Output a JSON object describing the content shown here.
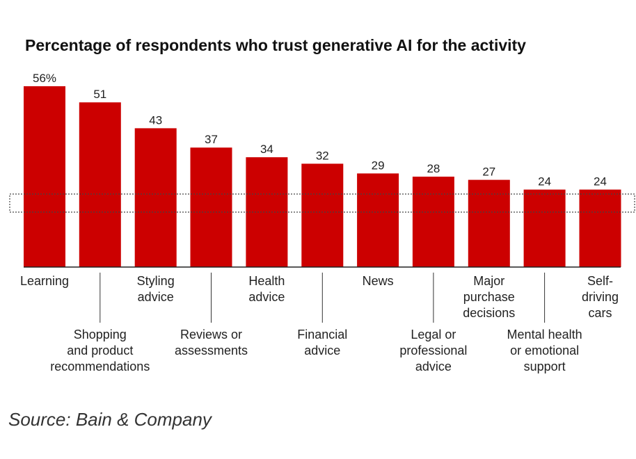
{
  "chart_data": {
    "type": "bar",
    "title": "Percentage of respondents who trust generative AI for the activity",
    "categories": [
      "Learning",
      "Shopping and product recommendations",
      "Styling advice",
      "Reviews or assessments",
      "Health advice",
      "Financial advice",
      "News",
      "Legal or professional advice",
      "Major purchase decisions",
      "Mental health or emotional support",
      "Self-driving cars"
    ],
    "label_lines": [
      [
        "Learning"
      ],
      [
        "Shopping",
        "and product",
        "recommendations"
      ],
      [
        "Styling",
        "advice"
      ],
      [
        "Reviews or",
        "assessments"
      ],
      [
        "Health",
        "advice"
      ],
      [
        "Financial",
        "advice"
      ],
      [
        "News"
      ],
      [
        "Legal or",
        "professional",
        "advice"
      ],
      [
        "Major",
        "purchase",
        "decisions"
      ],
      [
        "Mental health",
        "or emotional",
        "support"
      ],
      [
        "Self-",
        "driving",
        "cars"
      ]
    ],
    "values": [
      56,
      51,
      43,
      37,
      34,
      32,
      29,
      28,
      27,
      24,
      24
    ],
    "data_labels": [
      "56%",
      "51",
      "43",
      "37",
      "34",
      "32",
      "29",
      "28",
      "27",
      "24",
      "24"
    ],
    "unit": "%",
    "ylim": [
      0,
      56
    ],
    "bar_color": "#cc0000",
    "grid": false,
    "legend": "none"
  },
  "source": "Source: Bain & Company"
}
